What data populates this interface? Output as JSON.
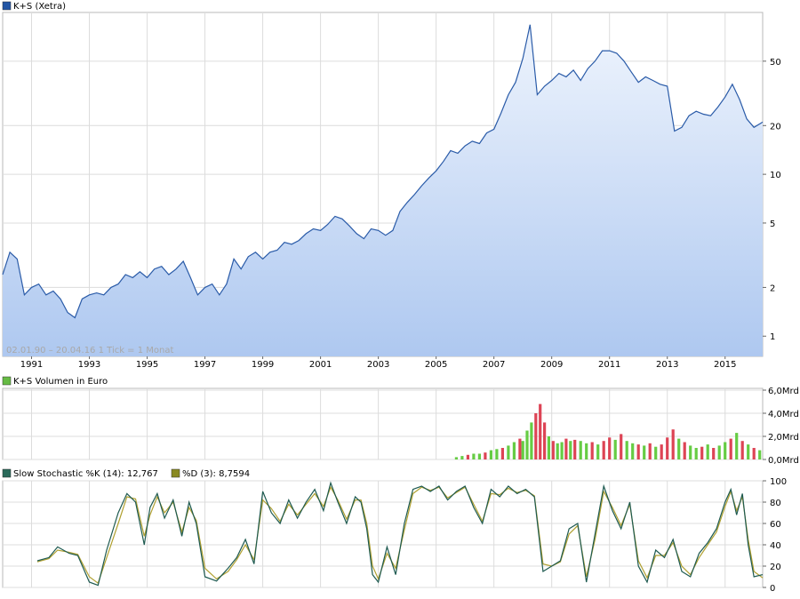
{
  "chart_data": [
    {
      "type": "area",
      "legend": {
        "label": "K+S (Xetra)",
        "color": "#2255a4"
      },
      "scale": "log",
      "ylim": [
        0.75,
        100
      ],
      "y_ticks": [
        "1",
        "2",
        "5",
        "10",
        "20",
        "50"
      ],
      "y_tick_values": [
        1,
        2,
        5,
        10,
        20,
        50
      ],
      "xlim": [
        1990.0,
        2016.3
      ],
      "x_ticks": [
        "1991",
        "1993",
        "1995",
        "1997",
        "1999",
        "2001",
        "2003",
        "2005",
        "2007",
        "2009",
        "2011",
        "2013",
        "2015"
      ],
      "x_tick_values": [
        1991,
        1993,
        1995,
        1997,
        1999,
        2001,
        2003,
        2005,
        2007,
        2009,
        2011,
        2013,
        2015
      ],
      "footnote": "02.01.90 – 20.04.16   1 Tick = 1 Monat",
      "line_color": "#2a5ba8",
      "fill_top": "#eef4fd",
      "fill_bottom": "#aec8f0",
      "x": [
        1990.0,
        1990.25,
        1990.5,
        1990.75,
        1991.0,
        1991.25,
        1991.5,
        1991.75,
        1992.0,
        1992.25,
        1992.5,
        1992.75,
        1993.0,
        1993.25,
        1993.5,
        1993.75,
        1994.0,
        1994.25,
        1994.5,
        1994.75,
        1995.0,
        1995.25,
        1995.5,
        1995.75,
        1996.0,
        1996.25,
        1996.5,
        1996.75,
        1997.0,
        1997.25,
        1997.5,
        1997.75,
        1998.0,
        1998.25,
        1998.5,
        1998.75,
        1999.0,
        1999.25,
        1999.5,
        1999.75,
        2000.0,
        2000.25,
        2000.5,
        2000.75,
        2001.0,
        2001.25,
        2001.5,
        2001.75,
        2002.0,
        2002.25,
        2002.5,
        2002.75,
        2003.0,
        2003.25,
        2003.5,
        2003.75,
        2004.0,
        2004.25,
        2004.5,
        2004.75,
        2005.0,
        2005.25,
        2005.5,
        2005.75,
        2006.0,
        2006.25,
        2006.5,
        2006.75,
        2007.0,
        2007.25,
        2007.5,
        2007.75,
        2008.0,
        2008.25,
        2008.5,
        2008.75,
        2009.0,
        2009.25,
        2009.5,
        2009.75,
        2010.0,
        2010.25,
        2010.5,
        2010.75,
        2011.0,
        2011.25,
        2011.5,
        2011.75,
        2012.0,
        2012.25,
        2012.5,
        2012.75,
        2013.0,
        2013.25,
        2013.5,
        2013.75,
        2014.0,
        2014.25,
        2014.5,
        2014.75,
        2015.0,
        2015.25,
        2015.5,
        2015.75,
        2016.0,
        2016.3
      ],
      "values": [
        2.4,
        3.3,
        3.0,
        1.8,
        2.0,
        2.1,
        1.8,
        1.9,
        1.7,
        1.4,
        1.3,
        1.7,
        1.8,
        1.85,
        1.8,
        2.0,
        2.1,
        2.4,
        2.3,
        2.5,
        2.3,
        2.6,
        2.7,
        2.4,
        2.6,
        2.9,
        2.3,
        1.8,
        2.0,
        2.1,
        1.8,
        2.1,
        3.0,
        2.6,
        3.1,
        3.3,
        3.0,
        3.3,
        3.4,
        3.8,
        3.7,
        3.9,
        4.3,
        4.6,
        4.5,
        4.9,
        5.5,
        5.3,
        4.8,
        4.3,
        4.0,
        4.6,
        4.5,
        4.2,
        4.5,
        5.9,
        6.7,
        7.5,
        8.5,
        9.5,
        10.5,
        12.0,
        14.0,
        13.5,
        15.0,
        16.0,
        15.5,
        18.0,
        19.0,
        24.0,
        31.0,
        37.0,
        52.0,
        84.0,
        31.0,
        35.0,
        38.0,
        42.0,
        40.0,
        44.0,
        38.0,
        45.0,
        50.0,
        58.0,
        58.0,
        56.0,
        50.0,
        43.0,
        37.0,
        40.0,
        38.0,
        36.0,
        35.0,
        18.5,
        19.5,
        23.0,
        24.5,
        23.5,
        23.0,
        26.0,
        30.0,
        36.0,
        29.0,
        22.0,
        19.5,
        21.0
      ]
    },
    {
      "type": "bar",
      "legend": {
        "label": "K+S Volumen in Euro",
        "color": "#66bb44"
      },
      "ylim": [
        0,
        6.0
      ],
      "unit": "Mrd",
      "y_ticks": [
        "0,0Mrd",
        "2,0Mrd",
        "4,0Mrd",
        "6,0Mrd"
      ],
      "y_tick_values": [
        0,
        2,
        4,
        6
      ],
      "xlim": [
        1990.0,
        2016.3
      ],
      "up_color": "#66cc44",
      "down_color": "#dd4455",
      "x": [
        2005.7,
        2005.9,
        2006.1,
        2006.3,
        2006.5,
        2006.7,
        2006.9,
        2007.1,
        2007.3,
        2007.5,
        2007.7,
        2007.9,
        2008.0,
        2008.15,
        2008.3,
        2008.45,
        2008.6,
        2008.75,
        2008.9,
        2009.05,
        2009.2,
        2009.35,
        2009.5,
        2009.65,
        2009.8,
        2010.0,
        2010.2,
        2010.4,
        2010.6,
        2010.8,
        2011.0,
        2011.2,
        2011.4,
        2011.6,
        2011.8,
        2012.0,
        2012.2,
        2012.4,
        2012.6,
        2012.8,
        2013.0,
        2013.2,
        2013.4,
        2013.6,
        2013.8,
        2014.0,
        2014.2,
        2014.4,
        2014.6,
        2014.8,
        2015.0,
        2015.2,
        2015.4,
        2015.6,
        2015.8,
        2016.0,
        2016.2
      ],
      "values": [
        0.2,
        0.3,
        0.4,
        0.5,
        0.5,
        0.6,
        0.8,
        0.9,
        1.0,
        1.2,
        1.5,
        1.8,
        1.6,
        2.5,
        3.2,
        4.0,
        4.8,
        3.2,
        2.0,
        1.6,
        1.4,
        1.5,
        1.8,
        1.6,
        1.7,
        1.6,
        1.4,
        1.5,
        1.3,
        1.6,
        1.9,
        1.7,
        2.2,
        1.6,
        1.4,
        1.3,
        1.2,
        1.4,
        1.1,
        1.3,
        1.9,
        2.6,
        1.8,
        1.5,
        1.2,
        1.0,
        1.1,
        1.3,
        1.0,
        1.2,
        1.5,
        1.8,
        2.3,
        1.6,
        1.3,
        1.0,
        0.8
      ],
      "up": [
        true,
        true,
        false,
        true,
        true,
        false,
        true,
        true,
        false,
        true,
        true,
        false,
        true,
        true,
        true,
        false,
        false,
        false,
        true,
        false,
        true,
        true,
        false,
        true,
        false,
        true,
        true,
        false,
        true,
        false,
        false,
        true,
        false,
        true,
        true,
        false,
        true,
        false,
        true,
        false,
        false,
        false,
        true,
        false,
        true,
        true,
        false,
        true,
        false,
        true,
        true,
        false,
        true,
        false,
        true,
        false,
        true
      ]
    },
    {
      "type": "line",
      "legend": [
        {
          "label": "Slow Stochastic %K (14): 12,767",
          "color": "#2a6a5a"
        },
        {
          "label": "%D (3): 8,7594",
          "color": "#8a8a22"
        }
      ],
      "ylim": [
        0,
        100
      ],
      "y_ticks": [
        "0",
        "20",
        "40",
        "60",
        "80",
        "100"
      ],
      "y_tick_values": [
        0,
        20,
        40,
        60,
        80,
        100
      ],
      "xlim": [
        1990.0,
        2016.3
      ],
      "k_color": "#1e5a50",
      "d_color": "#b0a030",
      "x": [
        1991.2,
        1991.6,
        1991.9,
        1992.3,
        1992.6,
        1993.0,
        1993.3,
        1993.6,
        1994.0,
        1994.3,
        1994.6,
        1994.9,
        1995.1,
        1995.35,
        1995.6,
        1995.9,
        1996.2,
        1996.45,
        1996.7,
        1997.0,
        1997.4,
        1997.8,
        1998.1,
        1998.4,
        1998.7,
        1999.0,
        1999.3,
        1999.6,
        1999.9,
        2000.2,
        2000.5,
        2000.8,
        2001.1,
        2001.35,
        2001.6,
        2001.9,
        2002.2,
        2002.4,
        2002.6,
        2002.8,
        2003.0,
        2003.3,
        2003.6,
        2003.9,
        2004.2,
        2004.5,
        2004.8,
        2005.1,
        2005.4,
        2005.7,
        2006.0,
        2006.3,
        2006.6,
        2006.9,
        2007.2,
        2007.5,
        2007.8,
        2008.1,
        2008.4,
        2008.7,
        2009.0,
        2009.3,
        2009.6,
        2009.9,
        2010.2,
        2010.5,
        2010.8,
        2011.1,
        2011.4,
        2011.7,
        2012.0,
        2012.3,
        2012.6,
        2012.9,
        2013.2,
        2013.5,
        2013.8,
        2014.1,
        2014.4,
        2014.7,
        2015.0,
        2015.2,
        2015.4,
        2015.6,
        2015.8,
        2016.0,
        2016.3
      ],
      "k": [
        25,
        28,
        38,
        32,
        30,
        5,
        2,
        35,
        70,
        88,
        80,
        40,
        75,
        88,
        65,
        82,
        48,
        80,
        60,
        10,
        6,
        18,
        28,
        45,
        22,
        90,
        70,
        60,
        82,
        65,
        80,
        92,
        72,
        98,
        80,
        60,
        85,
        80,
        55,
        12,
        5,
        38,
        12,
        60,
        92,
        95,
        90,
        95,
        82,
        90,
        95,
        75,
        60,
        92,
        85,
        95,
        88,
        92,
        85,
        15,
        20,
        25,
        55,
        60,
        5,
        50,
        95,
        72,
        55,
        80,
        20,
        5,
        35,
        28,
        45,
        15,
        10,
        32,
        42,
        55,
        80,
        92,
        68,
        88,
        40,
        10,
        12
      ],
      "d": [
        24,
        27,
        35,
        33,
        31,
        10,
        4,
        28,
        60,
        85,
        83,
        48,
        68,
        85,
        70,
        80,
        52,
        75,
        63,
        18,
        8,
        15,
        26,
        40,
        26,
        82,
        74,
        62,
        78,
        68,
        78,
        88,
        76,
        94,
        82,
        64,
        82,
        82,
        60,
        20,
        8,
        32,
        18,
        54,
        88,
        94,
        91,
        94,
        84,
        89,
        94,
        78,
        62,
        88,
        87,
        93,
        89,
        91,
        86,
        22,
        20,
        24,
        50,
        58,
        10,
        45,
        90,
        75,
        58,
        78,
        25,
        9,
        30,
        30,
        42,
        20,
        12,
        28,
        40,
        52,
        76,
        90,
        72,
        85,
        45,
        15,
        9
      ]
    }
  ]
}
